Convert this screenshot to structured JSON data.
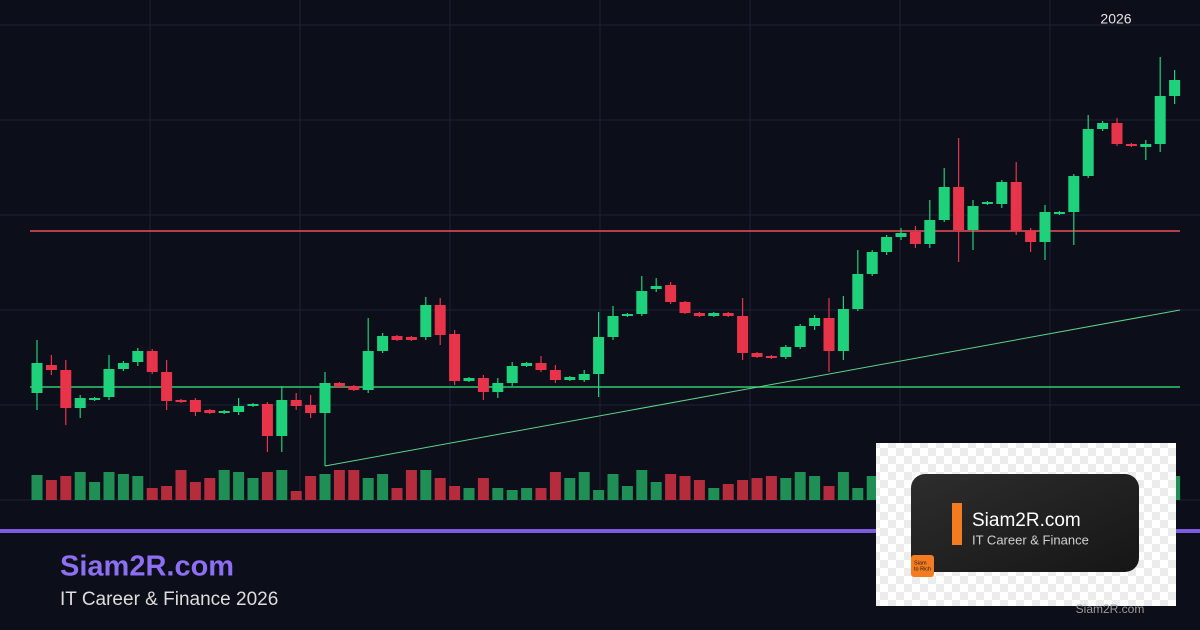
{
  "chart_data": {
    "type": "candlestick",
    "annotation": "2026",
    "up_color": "#1fd17a",
    "down_color": "#e8344a",
    "up_volume_color": "#1f8f55",
    "down_volume_color": "#b52c3d",
    "ylim": [
      0,
      500
    ],
    "open": [
      107,
      135,
      130,
      92,
      100,
      103,
      131,
      138,
      149,
      128,
      100,
      100,
      90,
      87,
      88,
      94,
      96,
      64,
      100,
      95,
      87,
      117,
      114,
      110,
      149,
      164,
      163,
      163,
      195,
      166,
      119,
      122,
      108,
      117,
      134,
      137,
      130,
      120,
      120,
      126,
      163,
      184,
      186,
      211,
      215,
      198,
      187,
      184,
      187,
      184,
      147,
      144,
      143,
      153,
      174,
      182,
      149,
      191,
      226,
      248,
      263,
      268,
      256,
      280,
      313,
      270,
      296,
      296,
      318,
      269,
      258,
      286,
      288,
      324,
      371,
      377,
      356,
      353,
      356,
      404
    ],
    "close": [
      137,
      130,
      92,
      102,
      102,
      131,
      137,
      149,
      128,
      99,
      98,
      88,
      87,
      89,
      94,
      96,
      64,
      100,
      94,
      87,
      117,
      113,
      110,
      149,
      164,
      160,
      160,
      195,
      165,
      119,
      122,
      108,
      117,
      134,
      137,
      130,
      120,
      123,
      126,
      163,
      184,
      186,
      209,
      214,
      198,
      187,
      184,
      187,
      184,
      147,
      143,
      142,
      153,
      174,
      182,
      149,
      191,
      226,
      248,
      263,
      267,
      256,
      280,
      313,
      270,
      294,
      298,
      318,
      269,
      258,
      288,
      288,
      324,
      371,
      377,
      356,
      354,
      356,
      404,
      420
    ],
    "high": [
      160,
      145,
      140,
      105,
      103,
      145,
      139,
      152,
      151,
      140,
      101,
      102,
      91,
      90,
      102,
      97,
      98,
      114,
      107,
      105,
      128,
      118,
      115,
      182,
      167,
      165,
      164,
      203,
      202,
      170,
      123,
      125,
      122,
      138,
      138,
      144,
      135,
      124,
      130,
      188,
      194,
      187,
      224,
      222,
      218,
      199,
      188,
      188,
      188,
      202,
      148,
      145,
      155,
      176,
      185,
      202,
      204,
      250,
      250,
      265,
      272,
      274,
      300,
      332,
      362,
      300,
      299,
      320,
      338,
      272,
      295,
      289,
      326,
      385,
      379,
      382,
      357,
      360,
      443,
      430
    ],
    "low": [
      90,
      125,
      75,
      82,
      99,
      100,
      129,
      134,
      126,
      90,
      97,
      84,
      86,
      86,
      85,
      93,
      48,
      48,
      90,
      82,
      34,
      112,
      109,
      107,
      147,
      159,
      159,
      160,
      155,
      115,
      118,
      100,
      102,
      114,
      133,
      128,
      117,
      119,
      118,
      103,
      160,
      183,
      184,
      208,
      196,
      186,
      183,
      183,
      183,
      140,
      142,
      141,
      141,
      151,
      170,
      128,
      140,
      189,
      224,
      245,
      260,
      252,
      252,
      278,
      238,
      250,
      295,
      292,
      265,
      248,
      240,
      285,
      255,
      322,
      369,
      354,
      353,
      340,
      348,
      396
    ],
    "volume": [
      25,
      20,
      24,
      28,
      18,
      28,
      26,
      24,
      12,
      14,
      30,
      18,
      22,
      30,
      28,
      22,
      28,
      30,
      9,
      24,
      26,
      30,
      30,
      22,
      26,
      12,
      30,
      30,
      22,
      14,
      12,
      22,
      12,
      10,
      12,
      12,
      28,
      22,
      28,
      10,
      26,
      14,
      30,
      18,
      26,
      24,
      20,
      12,
      16,
      20,
      22,
      24,
      22,
      28,
      24,
      14,
      28,
      12,
      24,
      30,
      28,
      22,
      26,
      24,
      30,
      20,
      18,
      26,
      22,
      24,
      20,
      18,
      26,
      28,
      22,
      20,
      18,
      24,
      26,
      24
    ],
    "hlines": [
      {
        "value": 269,
        "color": "#e8505b"
      },
      {
        "value": 113,
        "color": "#2ecc71"
      }
    ],
    "trendline": {
      "values": [
        34,
        190
      ],
      "color": "#5fd38a"
    }
  },
  "footer": {
    "title": "Siam2R.com",
    "subtitle": "IT Career & Finance 2026"
  },
  "card": {
    "title": "Siam2R.com",
    "subtitle": "IT Career & Finance",
    "icon_lines": [
      "Siam",
      "to Rich"
    ],
    "watermark": "Siam2R.com"
  }
}
